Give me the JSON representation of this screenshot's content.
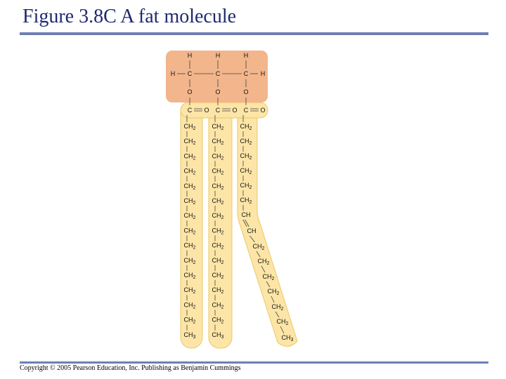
{
  "title": "Figure 3.8C A fat molecule",
  "copyright": "Copyright © 2005 Pearson Education, Inc. Publishing as Benjamin Cummings",
  "colors": {
    "glycerol_fill": "#f2b58c",
    "fatty_acid_fill": "#fce5a6",
    "fatty_acid_stroke": "#ecc866",
    "rule": "#6e7fb5",
    "title": "#1f2a6e"
  },
  "glycerol": {
    "top_h": [
      "H",
      "H",
      "H"
    ],
    "left_h": "H",
    "right_h": "H",
    "carbons": [
      "C",
      "C",
      "C"
    ],
    "oxygens": [
      "O",
      "O",
      "O"
    ]
  },
  "ester": {
    "carbons": [
      "C",
      "C",
      "C"
    ],
    "carbonyl_o": [
      "O",
      "O",
      "O"
    ]
  },
  "chains": [
    [
      "CH2",
      "CH2",
      "CH2",
      "CH2",
      "CH2",
      "CH2",
      "CH2",
      "CH2",
      "CH2",
      "CH2",
      "CH2",
      "CH2",
      "CH2",
      "CH2",
      "CH3"
    ],
    [
      "CH2",
      "CH2",
      "CH2",
      "CH2",
      "CH2",
      "CH2",
      "CH2",
      "CH2",
      "CH2",
      "CH2",
      "CH2",
      "CH2",
      "CH2",
      "CH2",
      "CH3"
    ],
    [
      "CH2",
      "CH2",
      "CH2",
      "CH2",
      "CH2",
      "CH2",
      "CH",
      "CH",
      "CH2",
      "CH2",
      "CH2",
      "CH2",
      "CH2",
      "CH2",
      "CH3"
    ]
  ]
}
